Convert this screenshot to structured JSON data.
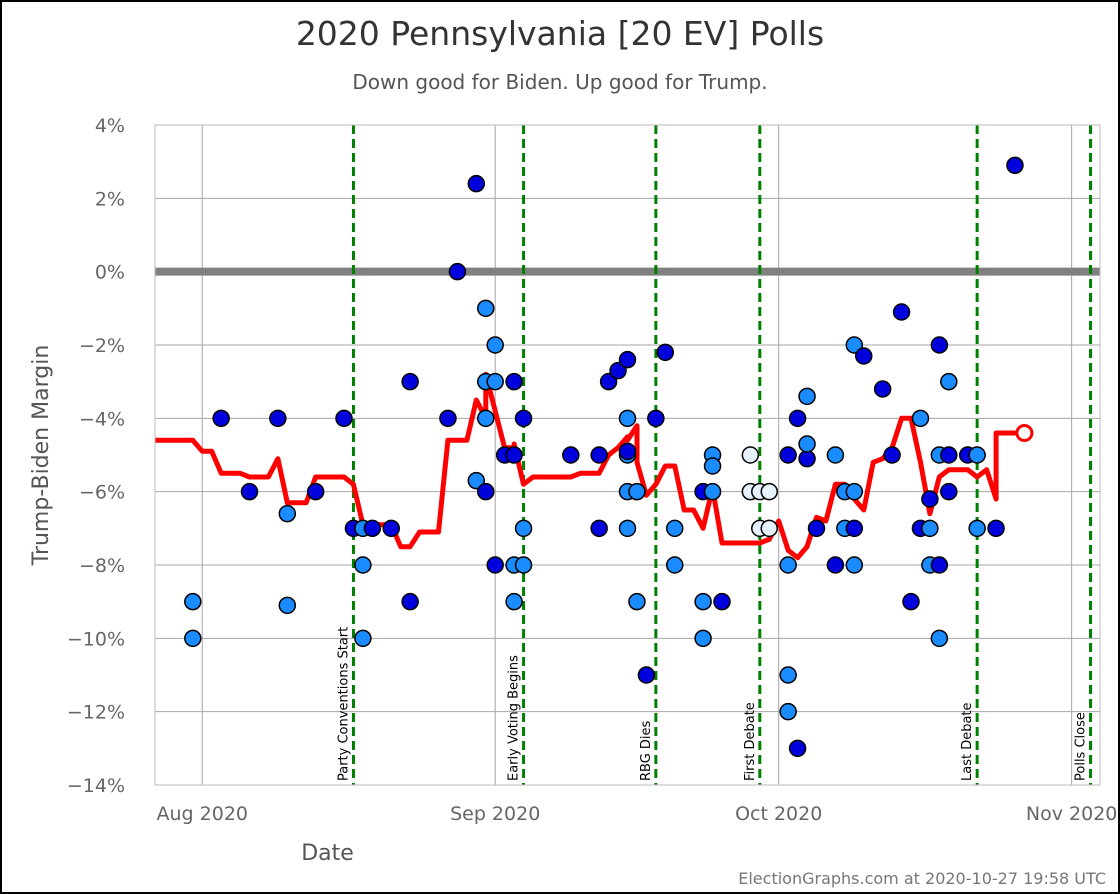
{
  "chart_data": {
    "type": "scatter",
    "title": "2020 Pennsylvania [20 EV] Polls",
    "subtitle": "Down good for Biden. Up good for Trump.",
    "xlabel": "Date",
    "ylabel": "Trump-Biden Margin",
    "source": "ElectionGraphs.com at 2020-10-27 19:58 UTC",
    "xlim": [
      "2020-07-27",
      "2020-11-04"
    ],
    "ylim": [
      -14,
      4
    ],
    "yticks": [
      {
        "v": 4,
        "label": "4%"
      },
      {
        "v": 2,
        "label": "2%"
      },
      {
        "v": 0,
        "label": "0%"
      },
      {
        "v": -2,
        "label": "−2%"
      },
      {
        "v": -4,
        "label": "−4%"
      },
      {
        "v": -6,
        "label": "−6%"
      },
      {
        "v": -8,
        "label": "−8%"
      },
      {
        "v": -10,
        "label": "−10%"
      },
      {
        "v": -12,
        "label": "−12%"
      },
      {
        "v": -14,
        "label": "−14%"
      }
    ],
    "xticks": [
      {
        "date": "2020-08-01",
        "label": "Aug 2020"
      },
      {
        "date": "2020-09-01",
        "label": "Sep 2020"
      },
      {
        "date": "2020-10-01",
        "label": "Oct 2020"
      },
      {
        "date": "2020-11-01",
        "label": "Nov 2020"
      }
    ],
    "bands": [
      {
        "from": -10,
        "to": -5,
        "color": "#ccccff"
      },
      {
        "from": -14,
        "to": -10,
        "color": "#9999ff"
      }
    ],
    "events": [
      {
        "date": "2020-08-17",
        "label": "Party Conventions Start"
      },
      {
        "date": "2020-09-04",
        "label": "Early Voting Begins"
      },
      {
        "date": "2020-09-18",
        "label": "RBG Dies"
      },
      {
        "date": "2020-09-29",
        "label": "First Debate"
      },
      {
        "date": "2020-10-22",
        "label": "Last Debate"
      },
      {
        "date": "2020-11-03",
        "label": "Polls Close"
      }
    ],
    "colors": {
      "dark": "#0000dd",
      "medium": "#1a8cff",
      "light": "#e6f2ff",
      "line": "#ff0000",
      "event": "#008000",
      "zero": "#808080"
    },
    "points": [
      {
        "x": "2020-07-31",
        "y": -9,
        "c": "medium"
      },
      {
        "x": "2020-07-31",
        "y": -10,
        "c": "medium"
      },
      {
        "x": "2020-08-03",
        "y": -4,
        "c": "dark"
      },
      {
        "x": "2020-08-06",
        "y": -6,
        "c": "dark"
      },
      {
        "x": "2020-08-09",
        "y": -4,
        "c": "dark"
      },
      {
        "x": "2020-08-10",
        "y": -6.6,
        "c": "medium"
      },
      {
        "x": "2020-08-10",
        "y": -9.1,
        "c": "medium"
      },
      {
        "x": "2020-08-13",
        "y": -6,
        "c": "dark"
      },
      {
        "x": "2020-08-16",
        "y": -4,
        "c": "dark"
      },
      {
        "x": "2020-08-17",
        "y": -7,
        "c": "dark"
      },
      {
        "x": "2020-08-18",
        "y": -7,
        "c": "medium"
      },
      {
        "x": "2020-08-18",
        "y": -8,
        "c": "medium"
      },
      {
        "x": "2020-08-18",
        "y": -10,
        "c": "medium"
      },
      {
        "x": "2020-08-19",
        "y": -7,
        "c": "dark"
      },
      {
        "x": "2020-08-21",
        "y": -7,
        "c": "dark"
      },
      {
        "x": "2020-08-23",
        "y": -3,
        "c": "dark"
      },
      {
        "x": "2020-08-23",
        "y": -9,
        "c": "dark"
      },
      {
        "x": "2020-08-27",
        "y": -4,
        "c": "dark"
      },
      {
        "x": "2020-08-28",
        "y": 0,
        "c": "dark"
      },
      {
        "x": "2020-08-30",
        "y": 2.4,
        "c": "dark"
      },
      {
        "x": "2020-08-30",
        "y": -5.7,
        "c": "medium"
      },
      {
        "x": "2020-08-31",
        "y": -6,
        "c": "dark"
      },
      {
        "x": "2020-08-31",
        "y": -1,
        "c": "medium"
      },
      {
        "x": "2020-08-31",
        "y": -3,
        "c": "medium"
      },
      {
        "x": "2020-08-31",
        "y": -4,
        "c": "medium"
      },
      {
        "x": "2020-09-01",
        "y": -2,
        "c": "medium"
      },
      {
        "x": "2020-09-01",
        "y": -3,
        "c": "medium"
      },
      {
        "x": "2020-09-01",
        "y": -8,
        "c": "dark"
      },
      {
        "x": "2020-09-02",
        "y": -5,
        "c": "dark"
      },
      {
        "x": "2020-09-03",
        "y": -5,
        "c": "dark"
      },
      {
        "x": "2020-09-03",
        "y": -3,
        "c": "dark"
      },
      {
        "x": "2020-09-03",
        "y": -8,
        "c": "medium"
      },
      {
        "x": "2020-09-03",
        "y": -9,
        "c": "medium"
      },
      {
        "x": "2020-09-04",
        "y": -8,
        "c": "medium"
      },
      {
        "x": "2020-09-04",
        "y": -7,
        "c": "medium"
      },
      {
        "x": "2020-09-04",
        "y": -4,
        "c": "dark"
      },
      {
        "x": "2020-09-09",
        "y": -5,
        "c": "dark"
      },
      {
        "x": "2020-09-12",
        "y": -5,
        "c": "dark"
      },
      {
        "x": "2020-09-12",
        "y": -7,
        "c": "dark"
      },
      {
        "x": "2020-09-13",
        "y": -3,
        "c": "dark"
      },
      {
        "x": "2020-09-14",
        "y": -2.7,
        "c": "dark"
      },
      {
        "x": "2020-09-15",
        "y": -2.4,
        "c": "dark"
      },
      {
        "x": "2020-09-15",
        "y": -4,
        "c": "medium"
      },
      {
        "x": "2020-09-15",
        "y": -5,
        "c": "medium"
      },
      {
        "x": "2020-09-15",
        "y": -6,
        "c": "medium"
      },
      {
        "x": "2020-09-15",
        "y": -7,
        "c": "medium"
      },
      {
        "x": "2020-09-15",
        "y": -4.9,
        "c": "dark"
      },
      {
        "x": "2020-09-16",
        "y": -6,
        "c": "medium"
      },
      {
        "x": "2020-09-16",
        "y": -9,
        "c": "medium"
      },
      {
        "x": "2020-09-17",
        "y": -11,
        "c": "dark"
      },
      {
        "x": "2020-09-18",
        "y": -4,
        "c": "dark"
      },
      {
        "x": "2020-09-19",
        "y": -2.2,
        "c": "dark"
      },
      {
        "x": "2020-09-20",
        "y": -7,
        "c": "medium"
      },
      {
        "x": "2020-09-20",
        "y": -8,
        "c": "medium"
      },
      {
        "x": "2020-09-23",
        "y": -9,
        "c": "medium"
      },
      {
        "x": "2020-09-23",
        "y": -10,
        "c": "medium"
      },
      {
        "x": "2020-09-23",
        "y": -6,
        "c": "dark"
      },
      {
        "x": "2020-09-24",
        "y": -5,
        "c": "medium"
      },
      {
        "x": "2020-09-24",
        "y": -5.3,
        "c": "medium"
      },
      {
        "x": "2020-09-24",
        "y": -6,
        "c": "medium"
      },
      {
        "x": "2020-09-25",
        "y": -9,
        "c": "dark"
      },
      {
        "x": "2020-09-28",
        "y": -5,
        "c": "light"
      },
      {
        "x": "2020-09-28",
        "y": -6,
        "c": "light"
      },
      {
        "x": "2020-09-29",
        "y": -6,
        "c": "light"
      },
      {
        "x": "2020-09-29",
        "y": -7,
        "c": "light"
      },
      {
        "x": "2020-09-30",
        "y": -6,
        "c": "light"
      },
      {
        "x": "2020-09-30",
        "y": -7,
        "c": "light"
      },
      {
        "x": "2020-10-02",
        "y": -5,
        "c": "dark"
      },
      {
        "x": "2020-10-02",
        "y": -8,
        "c": "medium"
      },
      {
        "x": "2020-10-02",
        "y": -11,
        "c": "medium"
      },
      {
        "x": "2020-10-02",
        "y": -12,
        "c": "medium"
      },
      {
        "x": "2020-10-03",
        "y": -4,
        "c": "dark"
      },
      {
        "x": "2020-10-03",
        "y": -13,
        "c": "dark"
      },
      {
        "x": "2020-10-04",
        "y": -5.1,
        "c": "dark"
      },
      {
        "x": "2020-10-04",
        "y": -3.4,
        "c": "medium"
      },
      {
        "x": "2020-10-04",
        "y": -4.7,
        "c": "medium"
      },
      {
        "x": "2020-10-05",
        "y": -7,
        "c": "dark"
      },
      {
        "x": "2020-10-07",
        "y": -8,
        "c": "dark"
      },
      {
        "x": "2020-10-07",
        "y": -5,
        "c": "medium"
      },
      {
        "x": "2020-10-08",
        "y": -6,
        "c": "medium"
      },
      {
        "x": "2020-10-08",
        "y": -7,
        "c": "medium"
      },
      {
        "x": "2020-10-09",
        "y": -2,
        "c": "medium"
      },
      {
        "x": "2020-10-09",
        "y": -6,
        "c": "medium"
      },
      {
        "x": "2020-10-09",
        "y": -7,
        "c": "dark"
      },
      {
        "x": "2020-10-09",
        "y": -8,
        "c": "medium"
      },
      {
        "x": "2020-10-10",
        "y": -2.3,
        "c": "dark"
      },
      {
        "x": "2020-10-12",
        "y": -3.2,
        "c": "dark"
      },
      {
        "x": "2020-10-13",
        "y": -5,
        "c": "dark"
      },
      {
        "x": "2020-10-14",
        "y": -1.1,
        "c": "dark"
      },
      {
        "x": "2020-10-15",
        "y": -9,
        "c": "dark"
      },
      {
        "x": "2020-10-16",
        "y": -4,
        "c": "medium"
      },
      {
        "x": "2020-10-16",
        "y": -7,
        "c": "dark"
      },
      {
        "x": "2020-10-17",
        "y": -7,
        "c": "medium"
      },
      {
        "x": "2020-10-17",
        "y": -6.2,
        "c": "dark"
      },
      {
        "x": "2020-10-17",
        "y": -8,
        "c": "medium"
      },
      {
        "x": "2020-10-18",
        "y": -2,
        "c": "dark"
      },
      {
        "x": "2020-10-18",
        "y": -5,
        "c": "medium"
      },
      {
        "x": "2020-10-18",
        "y": -8,
        "c": "dark"
      },
      {
        "x": "2020-10-18",
        "y": -10,
        "c": "medium"
      },
      {
        "x": "2020-10-19",
        "y": -3,
        "c": "medium"
      },
      {
        "x": "2020-10-19",
        "y": -5,
        "c": "dark"
      },
      {
        "x": "2020-10-19",
        "y": -6,
        "c": "dark"
      },
      {
        "x": "2020-10-21",
        "y": -5,
        "c": "dark"
      },
      {
        "x": "2020-10-22",
        "y": -5,
        "c": "medium"
      },
      {
        "x": "2020-10-22",
        "y": -7,
        "c": "medium"
      },
      {
        "x": "2020-10-24",
        "y": -7,
        "c": "dark"
      },
      {
        "x": "2020-10-26",
        "y": 2.9,
        "c": "dark"
      }
    ],
    "average": [
      [
        "2020-07-27",
        -4.6
      ],
      [
        "2020-07-31",
        -4.6
      ],
      [
        "2020-08-01",
        -4.9
      ],
      [
        "2020-08-02",
        -4.9
      ],
      [
        "2020-08-03",
        -5.5
      ],
      [
        "2020-08-05",
        -5.5
      ],
      [
        "2020-08-06",
        -5.6
      ],
      [
        "2020-08-08",
        -5.6
      ],
      [
        "2020-08-09",
        -5.1
      ],
      [
        "2020-08-10",
        -6.3
      ],
      [
        "2020-08-12",
        -6.3
      ],
      [
        "2020-08-13",
        -5.6
      ],
      [
        "2020-08-15",
        -5.6
      ],
      [
        "2020-08-16",
        -5.6
      ],
      [
        "2020-08-17",
        -5.8
      ],
      [
        "2020-08-18",
        -6.9
      ],
      [
        "2020-08-20",
        -6.9
      ],
      [
        "2020-08-21",
        -6.9
      ],
      [
        "2020-08-22",
        -7.5
      ],
      [
        "2020-08-23",
        -7.5
      ],
      [
        "2020-08-24",
        -7.1
      ],
      [
        "2020-08-26",
        -7.1
      ],
      [
        "2020-08-27",
        -4.6
      ],
      [
        "2020-08-29",
        -4.6
      ],
      [
        "2020-08-30",
        -3.5
      ],
      [
        "2020-08-31",
        -4.0
      ],
      [
        "2020-08-31",
        -2.8
      ],
      [
        "2020-09-01",
        -3.8
      ],
      [
        "2020-09-02",
        -4.8
      ],
      [
        "2020-09-03",
        -4.8
      ],
      [
        "2020-09-03",
        -4.7
      ],
      [
        "2020-09-04",
        -5.8
      ],
      [
        "2020-09-05",
        -5.6
      ],
      [
        "2020-09-09",
        -5.6
      ],
      [
        "2020-09-10",
        -5.5
      ],
      [
        "2020-09-12",
        -5.5
      ],
      [
        "2020-09-13",
        -5.0
      ],
      [
        "2020-09-14",
        -4.8
      ],
      [
        "2020-09-15",
        -4.5
      ],
      [
        "2020-09-15",
        -4.6
      ],
      [
        "2020-09-16",
        -4.2
      ],
      [
        "2020-09-16",
        -5.2
      ],
      [
        "2020-09-17",
        -6.1
      ],
      [
        "2020-09-18",
        -5.8
      ],
      [
        "2020-09-19",
        -5.3
      ],
      [
        "2020-09-20",
        -5.3
      ],
      [
        "2020-09-21",
        -6.5
      ],
      [
        "2020-09-22",
        -6.5
      ],
      [
        "2020-09-23",
        -7.0
      ],
      [
        "2020-09-24",
        -5.9
      ],
      [
        "2020-09-25",
        -7.4
      ],
      [
        "2020-09-29",
        -7.4
      ],
      [
        "2020-09-30",
        -7.3
      ],
      [
        "2020-10-01",
        -6.8
      ],
      [
        "2020-10-02",
        -7.6
      ],
      [
        "2020-10-03",
        -7.8
      ],
      [
        "2020-10-04",
        -7.5
      ],
      [
        "2020-10-05",
        -6.7
      ],
      [
        "2020-10-06",
        -6.8
      ],
      [
        "2020-10-07",
        -5.8
      ],
      [
        "2020-10-08",
        -5.8
      ],
      [
        "2020-10-09",
        -6.2
      ],
      [
        "2020-10-10",
        -6.5
      ],
      [
        "2020-10-11",
        -5.2
      ],
      [
        "2020-10-12",
        -5.1
      ],
      [
        "2020-10-13",
        -4.8
      ],
      [
        "2020-10-14",
        -4.0
      ],
      [
        "2020-10-15",
        -4.0
      ],
      [
        "2020-10-16",
        -5.2
      ],
      [
        "2020-10-17",
        -6.6
      ],
      [
        "2020-10-18",
        -5.6
      ],
      [
        "2020-10-19",
        -5.4
      ],
      [
        "2020-10-21",
        -5.4
      ],
      [
        "2020-10-22",
        -5.6
      ],
      [
        "2020-10-23",
        -5.4
      ],
      [
        "2020-10-24",
        -6.2
      ],
      [
        "2020-10-24",
        -4.4
      ],
      [
        "2020-10-25",
        -4.4
      ],
      [
        "2020-10-27",
        -4.4
      ]
    ],
    "current": {
      "x": "2020-10-27",
      "y": -4.4
    }
  }
}
